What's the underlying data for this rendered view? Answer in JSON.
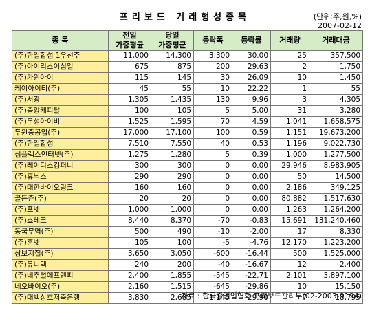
{
  "header": {
    "title": "프리보드 거래형성종목",
    "unit": "(단위:주,원,%)",
    "date": "2007-02-12"
  },
  "table": {
    "columns": [
      "종    목",
      [
        "전일",
        "가중평균"
      ],
      [
        "당일",
        "가중평균"
      ],
      "등락폭",
      "등락률",
      "거래량",
      "거래대금"
    ],
    "rows": [
      [
        "(주)한일합섬 1우선주",
        "11,000",
        "14,300",
        "3,300",
        "30.00",
        "25",
        "357,500"
      ],
      [
        "(주)아이리스이십일",
        "675",
        "875",
        "200",
        "29.63",
        "2",
        "1,750"
      ],
      [
        "(주)가원아이",
        "115",
        "145",
        "30",
        "26.09",
        "10",
        "1,450"
      ],
      [
        "케이아이티(주)",
        "45",
        "55",
        "10",
        "22.22",
        "1",
        "55"
      ],
      [
        "(주)서광",
        "1,305",
        "1,435",
        "130",
        "9.96",
        "3",
        "4,305"
      ],
      [
        "(주)중앙캐피탈",
        "100",
        "105",
        "5",
        "5.00",
        "31",
        "3,280"
      ],
      [
        "(주)우성아이비",
        "1,525",
        "1,595",
        "70",
        "4.59",
        "1,041",
        "1,658,575"
      ],
      [
        "두원중공업(주)",
        "17,000",
        "17,100",
        "100",
        "0.59",
        "1,151",
        "19,673,200"
      ],
      [
        "(주)한일합섬",
        "7,510",
        "7,550",
        "40",
        "0.53",
        "1,196",
        "9,022,730"
      ],
      [
        "심플렉스인터넷(주)",
        "1,275",
        "1,280",
        "5",
        "0.39",
        "1,000",
        "1,277,500"
      ],
      [
        "(주)레이디스컴퍼니",
        "300",
        "300",
        "0",
        "0.00",
        "29,946",
        "8,983,905"
      ],
      [
        "(주)휴닉스",
        "290",
        "290",
        "0",
        "0.00",
        "50",
        "14,500"
      ],
      [
        "(주)대한바이오링크",
        "160",
        "160",
        "0",
        "0.00",
        "2,186",
        "349,125"
      ],
      [
        "골든죤(주)",
        "20",
        "20",
        "0",
        "0.00",
        "80,882",
        "1,517,630"
      ],
      [
        "(주)포넷",
        "1,000",
        "1,000",
        "0",
        "0.00",
        "1,263",
        "1,264,200"
      ],
      [
        "(주)쇼테크",
        "8,440",
        "8,370",
        "-70",
        "-0.83",
        "15,691",
        "131,240,460"
      ],
      [
        "동국무역(주)",
        "500",
        "490",
        "-10",
        "-2.00",
        "17",
        "8,330"
      ],
      [
        "(주)훈넷",
        "105",
        "100",
        "-5",
        "-4.76",
        "12,170",
        "1,223,200"
      ],
      [
        "삼보지질(주)",
        "3,650",
        "3,050",
        "-600",
        "-16.44",
        "500",
        "1,525,000"
      ],
      [
        "(주)유니텍",
        "240",
        "200",
        "-40",
        "-16.67",
        "12",
        "2,400"
      ],
      [
        "(주)네추럴에프앤피",
        "2,400",
        "1,855",
        "-545",
        "-22.71",
        "2,101",
        "3,897,100"
      ],
      [
        "네오바이오(주)",
        "2,160",
        "1,515",
        "-645",
        "-29.86",
        "10",
        "15,150"
      ],
      [
        "(주)대백상호저축은행",
        "3,830",
        "2,685",
        "-1,145",
        "-29.90",
        "7",
        "18,795"
      ]
    ]
  },
  "footer": {
    "source": "자료 : 한국증권업협회 프리보드관리부(02-2003-9194)"
  },
  "colors": {
    "header_bg": "#d6ecc6",
    "name_bg": "#ffef9a",
    "border": "#777777"
  }
}
